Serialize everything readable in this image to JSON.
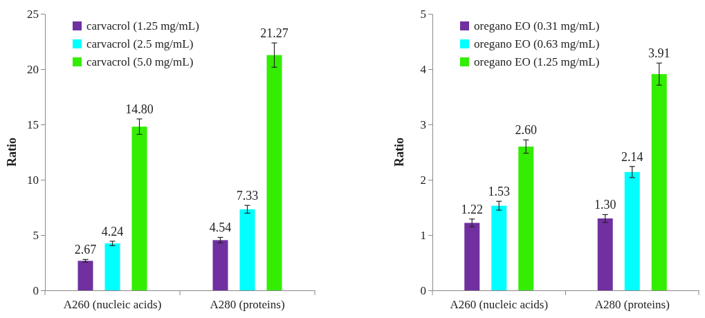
{
  "chart_data": [
    {
      "type": "bar",
      "ylabel": "Ratio",
      "categories": [
        "A260 (nucleic acids)",
        "A280 (proteins)"
      ],
      "ylim": [
        0,
        25
      ],
      "yticks": [
        0,
        5,
        10,
        15,
        20,
        25
      ],
      "grid": false,
      "legend": "top left",
      "series": [
        {
          "name": "carvacrol (1.25 mg/mL)",
          "color": "#7030a0",
          "values": [
            2.67,
            4.54
          ],
          "errors": [
            0.12,
            0.25
          ],
          "value_labels": [
            "2.67",
            "4.54"
          ]
        },
        {
          "name": "carvacrol (2.5 mg/mL)",
          "color": "#00ffff",
          "values": [
            4.24,
            7.33
          ],
          "errors": [
            0.2,
            0.35
          ],
          "value_labels": [
            "4.24",
            "7.33"
          ]
        },
        {
          "name": "carvacrol (5.0 mg/mL)",
          "color": "#33ee00",
          "values": [
            14.8,
            21.27
          ],
          "errors": [
            0.7,
            1.1
          ],
          "value_labels": [
            "14.80",
            "21.27"
          ]
        }
      ]
    },
    {
      "type": "bar",
      "ylabel": "Ratio",
      "categories": [
        "A260 (nucleic acids)",
        "A280 (proteins)"
      ],
      "ylim": [
        0,
        5
      ],
      "yticks": [
        0,
        1,
        2,
        3,
        4,
        5
      ],
      "grid": false,
      "legend": "top left",
      "series": [
        {
          "name": "oregano EO (0.31 mg/mL)",
          "color": "#7030a0",
          "values": [
            1.22,
            1.3
          ],
          "errors": [
            0.07,
            0.07
          ],
          "value_labels": [
            "1.22",
            "1.30"
          ]
        },
        {
          "name": "oregano EO (0.63 mg/mL)",
          "color": "#00ffff",
          "values": [
            1.53,
            2.14
          ],
          "errors": [
            0.08,
            0.1
          ],
          "value_labels": [
            "1.53",
            "2.14"
          ]
        },
        {
          "name": "oregano EO (1.25 mg/mL)",
          "color": "#33ee00",
          "values": [
            2.6,
            3.91
          ],
          "errors": [
            0.12,
            0.2
          ],
          "value_labels": [
            "2.60",
            "3.91"
          ]
        }
      ]
    }
  ]
}
